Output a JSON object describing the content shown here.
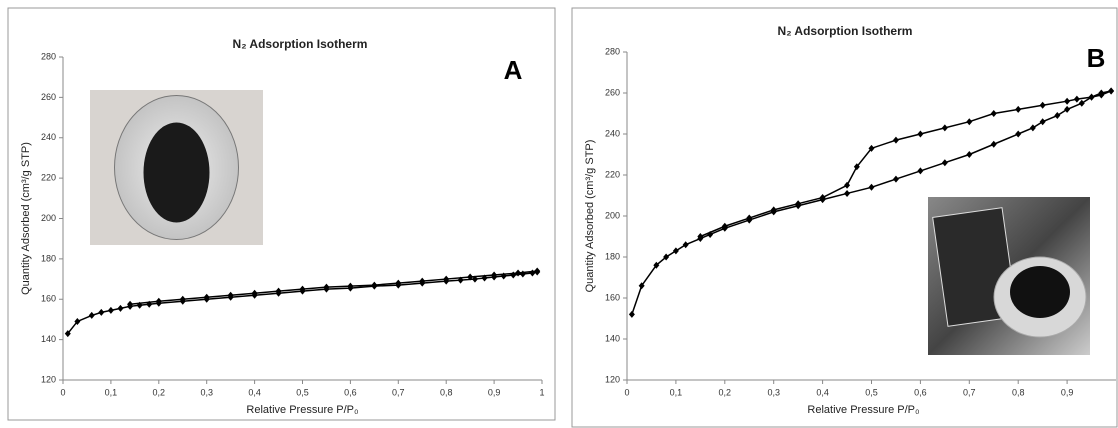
{
  "chart_data": [
    {
      "type": "line",
      "title": "N₂ Adsorption Isotherm",
      "label": "A",
      "x_label": "Relative Pressure P/P₀",
      "y_label": "Quantity Adsorbed (cm³/g STP)",
      "xlim": [
        0,
        1
      ],
      "ylim": [
        120,
        280
      ],
      "xticks": [
        0,
        {
          "value": 0.1,
          "label": "0,1"
        },
        {
          "value": 0.2,
          "label": "0,2"
        },
        {
          "value": 0.3,
          "label": "0,3"
        },
        {
          "value": 0.4,
          "label": "0,4"
        },
        {
          "value": 0.5,
          "label": "0,5"
        },
        {
          "value": 0.6,
          "label": "0,6"
        },
        {
          "value": 0.7,
          "label": "0,7"
        },
        {
          "value": 0.8,
          "label": "0,8"
        },
        {
          "value": 0.9,
          "label": "0,9"
        },
        1
      ],
      "yticks": [
        120,
        140,
        160,
        180,
        200,
        220,
        240,
        260,
        280
      ],
      "series": [
        {
          "color": "#000000",
          "x": [
            0.01,
            0.03,
            0.06,
            0.08,
            0.1,
            0.12,
            0.14,
            0.16,
            0.18,
            0.2,
            0.25,
            0.3,
            0.35,
            0.4,
            0.45,
            0.5,
            0.55,
            0.6,
            0.65,
            0.7,
            0.75,
            0.8,
            0.83,
            0.86,
            0.88,
            0.9,
            0.92,
            0.94,
            0.96,
            0.98,
            0.99
          ],
          "values": [
            143,
            149,
            152,
            153.5,
            154.5,
            155.5,
            156.5,
            157,
            157.5,
            158,
            159,
            160,
            161,
            162,
            163,
            164,
            165,
            165.5,
            166.5,
            167,
            168,
            169,
            169.5,
            170,
            170.5,
            171,
            171.5,
            172,
            172.5,
            173,
            173.5
          ]
        },
        {
          "color": "#000000",
          "x": [
            0.99,
            0.95,
            0.9,
            0.85,
            0.8,
            0.75,
            0.7,
            0.65,
            0.6,
            0.55,
            0.5,
            0.45,
            0.4,
            0.35,
            0.3,
            0.25,
            0.2,
            0.14
          ],
          "values": [
            174,
            173,
            172,
            171,
            170,
            169,
            168,
            167,
            166.5,
            166,
            165,
            164,
            163,
            162,
            161,
            160,
            159,
            157.5
          ]
        }
      ]
    },
    {
      "type": "line",
      "title": "N₂ Adsorption Isotherm",
      "label": "B",
      "x_label": "Relative Pressure P/P₀",
      "y_label": "Quantity Adsorbed (cm³/g STP)",
      "xlim": [
        0,
        1
      ],
      "ylim": [
        120,
        280
      ],
      "xticks": [
        0,
        {
          "value": 0.1,
          "label": "0,1"
        },
        {
          "value": 0.2,
          "label": "0,2"
        },
        {
          "value": 0.3,
          "label": "0,3"
        },
        {
          "value": 0.4,
          "label": "0,4"
        },
        {
          "value": 0.5,
          "label": "0,5"
        },
        {
          "value": 0.6,
          "label": "0,6"
        },
        {
          "value": 0.7,
          "label": "0,7"
        },
        {
          "value": 0.8,
          "label": "0,8"
        },
        {
          "value": 0.9,
          "label": "0,9"
        }
      ],
      "yticks": [
        120,
        140,
        160,
        180,
        200,
        220,
        240,
        260,
        280
      ],
      "series": [
        {
          "color": "#000000",
          "x": [
            0.01,
            0.03,
            0.06,
            0.08,
            0.1,
            0.12,
            0.15,
            0.17,
            0.2,
            0.25,
            0.3,
            0.35,
            0.4,
            0.45,
            0.5,
            0.55,
            0.6,
            0.65,
            0.7,
            0.75,
            0.8,
            0.83,
            0.85,
            0.88,
            0.9,
            0.93,
            0.95,
            0.97,
            0.99
          ],
          "values": [
            152,
            166,
            176,
            180,
            183,
            186,
            189,
            191,
            194,
            198,
            202,
            205,
            208,
            211,
            214,
            218,
            222,
            226,
            230,
            235,
            240,
            243,
            246,
            249,
            252,
            255,
            258,
            260,
            261
          ]
        },
        {
          "color": "#000000",
          "x": [
            0.99,
            0.97,
            0.95,
            0.92,
            0.9,
            0.85,
            0.8,
            0.75,
            0.7,
            0.65,
            0.6,
            0.55,
            0.5,
            0.47,
            0.45,
            0.4,
            0.35,
            0.3,
            0.25,
            0.2,
            0.15
          ],
          "values": [
            261,
            259,
            258,
            257,
            256,
            254,
            252,
            250,
            246,
            243,
            240,
            237,
            233,
            224,
            215,
            209,
            206,
            203,
            199,
            195,
            190
          ]
        }
      ]
    }
  ]
}
